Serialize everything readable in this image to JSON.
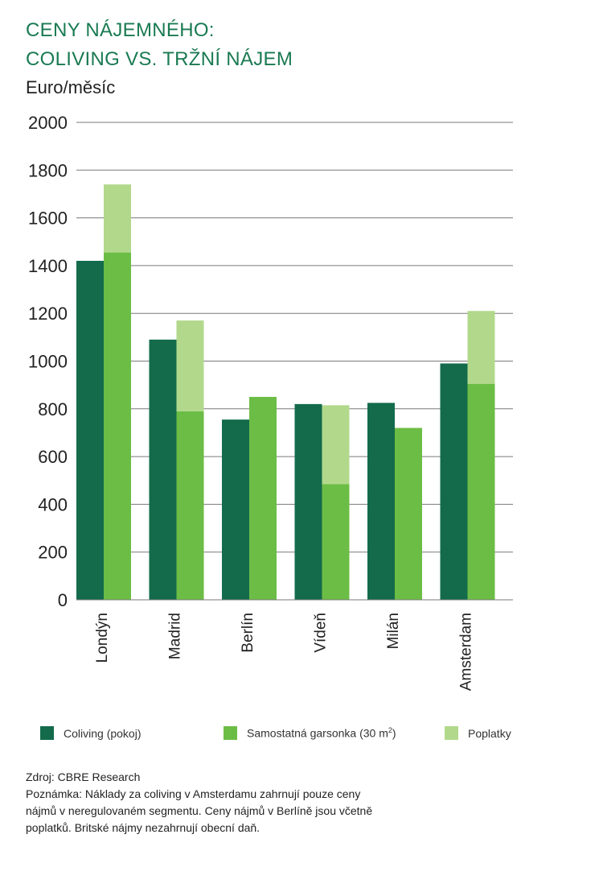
{
  "title_line1": "CENY NÁJEMNÉHO:",
  "title_line2": "COLIVING VS. TRŽNÍ NÁJEM",
  "colors": {
    "title": "#1a7a52",
    "coliving": "#136b4c",
    "garsonka": "#6cbd45",
    "poplatky": "#b2d98b",
    "grid": "#7a7a7a"
  },
  "legend": {
    "coliving": "Coliving (pokoj)",
    "garsonka_prefix": "Samostatná garsonka (30 m",
    "garsonka_sup": "2",
    "garsonka_suffix": ")",
    "poplatky": "Poplatky"
  },
  "footer": {
    "source": "Zdroj: CBRE Research",
    "note_lines": [
      "Poznámka: Náklady za coliving v Amsterdamu zahrnují pouze ceny",
      "nájmů v neregulovaném segmentu. Ceny nájmů v Berlíně jsou včetně",
      "poplatků. Britské nájmy nezahrnují obecní daň."
    ]
  },
  "chart_data": {
    "type": "bar",
    "ylabel": "Euro/měsíc",
    "ylim": [
      0,
      2000
    ],
    "yticks": [
      "0",
      "200",
      "400",
      "600",
      "800",
      "1000",
      "1200",
      "1400",
      "1600",
      "1800",
      "2000"
    ],
    "grid": true,
    "legend_position": "bottom",
    "categories": [
      "Londýn",
      "Madrid",
      "Berlín",
      "Vídeň",
      "Milán",
      "Amsterdam"
    ],
    "series": [
      {
        "name": "Coliving (pokoj)",
        "values": [
          1420,
          1090,
          755,
          820,
          825,
          990
        ]
      },
      {
        "name": "Samostatná garsonka (30 m2)",
        "values": [
          1455,
          790,
          850,
          485,
          720,
          905
        ]
      },
      {
        "name": "Poplatky",
        "stacked_on": "Samostatná garsonka (30 m2)",
        "values": [
          285,
          380,
          0,
          330,
          0,
          305
        ]
      }
    ]
  }
}
